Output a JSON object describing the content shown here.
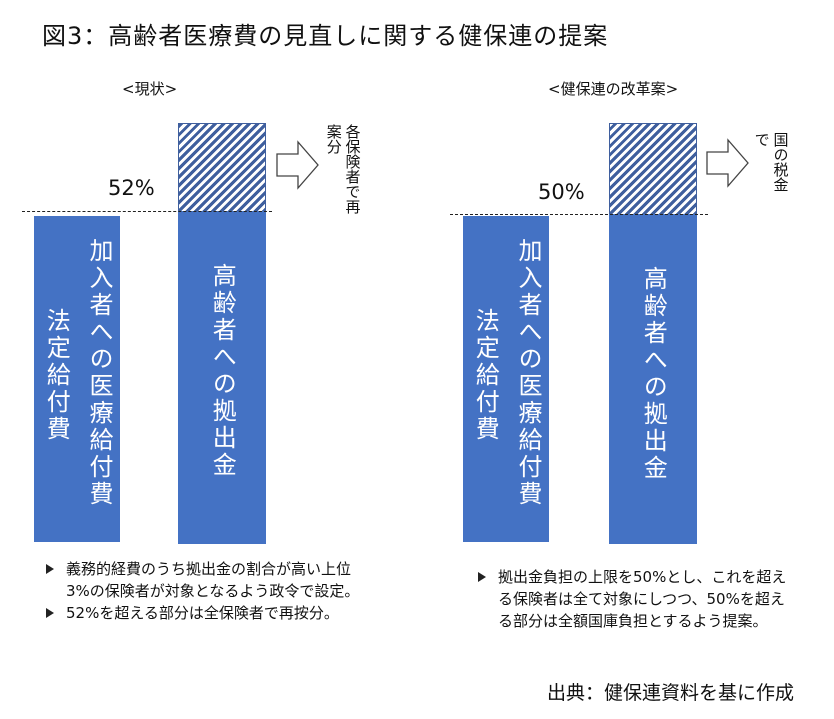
{
  "title": "図3：高齢者医療費の見直しに関する健保連の提案",
  "left_panel": {
    "label": "<現状>",
    "percent": "52%",
    "bar1_text": "法定給付費",
    "bar2_text": "加入者への医療給付費",
    "bar3_text": "高齢者への拠出金",
    "note": "各保険者で再案分",
    "bullets": [
      "義務的経費のうち拠出金の割合が高い上位3%の保険者が対象となるよう政令で設定。",
      "52%を超える部分は全保険者で再按分。"
    ]
  },
  "right_panel": {
    "label": "<健保連の改革案>",
    "percent": "50%",
    "bar1_text": "法定給付費",
    "bar2_text": "加入者への医療給付費",
    "bar3_text": "高齢者への拠出金",
    "note": "国の税金で",
    "bullets": [
      "拠出金負担の上限を50%とし、これを超える保険者は全て対象にしつつ、50%を超える部分は全額国庫負担とするよう提案。"
    ]
  },
  "source": "出典：健保連資料を基に作成",
  "colors": {
    "bar": "#4472c4",
    "hatch": "#3f5f9e"
  }
}
